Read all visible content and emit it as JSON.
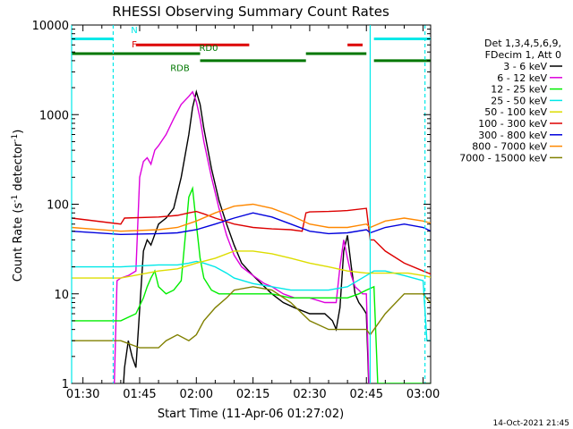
{
  "chart_data": {
    "type": "line",
    "title": "RHESSI Observing Summary Count Rates",
    "xlabel": "Start Time (11-Apr-06 01:27:02)",
    "ylabel_main": "Count Rate (s",
    "ylabel_sup1": "-1",
    "ylabel_mid": " detector",
    "ylabel_sup2": "-1",
    "ylabel_end": ")",
    "footer": "14-Oct-2021 21:45",
    "yscale": "log",
    "ylim": [
      1,
      10000
    ],
    "xlim": [
      87,
      182
    ],
    "x_unit": "minutes after 00:00 UT",
    "grid": false,
    "legend_placement": "right",
    "x_ticks": [
      {
        "value": 90,
        "label": "01:30"
      },
      {
        "value": 105,
        "label": "01:45"
      },
      {
        "value": 120,
        "label": "02:00"
      },
      {
        "value": 135,
        "label": "02:15"
      },
      {
        "value": 150,
        "label": "02:30"
      },
      {
        "value": 165,
        "label": "02:45"
      },
      {
        "value": 180,
        "label": "03:00"
      }
    ],
    "y_ticks": [
      {
        "value": 1,
        "label": "1"
      },
      {
        "value": 10,
        "label": "10"
      },
      {
        "value": 100,
        "label": "100"
      },
      {
        "value": 1000,
        "label": "1000"
      },
      {
        "value": 10000,
        "label": "10000"
      }
    ],
    "legend_header": [
      "Det 1,3,4,5,6,9,",
      "FDecim 1, Att 0"
    ],
    "series": [
      {
        "name": "3 - 6 keV",
        "color": "#000000",
        "x": [
          87,
          100,
          101,
          102,
          103,
          104,
          106,
          107,
          108,
          110,
          112,
          114,
          116,
          118,
          119,
          120,
          121,
          122,
          124,
          126,
          128,
          130,
          132,
          135,
          138,
          140,
          143,
          146,
          150,
          154,
          156,
          157,
          158,
          159,
          160,
          161,
          162,
          163,
          164,
          165,
          166,
          167
        ],
        "y": [
          0,
          0,
          1.5,
          3,
          2,
          1.5,
          30,
          40,
          35,
          60,
          70,
          90,
          200,
          600,
          1200,
          1800,
          1300,
          700,
          250,
          110,
          60,
          35,
          22,
          16,
          12,
          10,
          8,
          7,
          6,
          6,
          5,
          4,
          7,
          30,
          45,
          20,
          10,
          8,
          7,
          6,
          0,
          0
        ]
      },
      {
        "name": "6 - 12 keV",
        "color": "#dd00dd",
        "x": [
          87,
          98,
          99,
          100,
          102,
          104,
          105,
          106,
          107,
          108,
          109,
          110,
          112,
          114,
          116,
          118,
          119,
          120,
          121,
          122,
          124,
          126,
          128,
          130,
          132,
          135,
          138,
          140,
          143,
          146,
          150,
          154,
          157,
          158,
          159,
          160,
          161,
          162,
          163,
          164,
          165,
          166,
          167
        ],
        "y": [
          0,
          0,
          14,
          15,
          16,
          18,
          200,
          300,
          330,
          280,
          400,
          450,
          600,
          900,
          1300,
          1600,
          1800,
          1400,
          900,
          500,
          200,
          90,
          45,
          27,
          20,
          16,
          13,
          12,
          10,
          9,
          9,
          8,
          8,
          20,
          40,
          25,
          16,
          12,
          11,
          10,
          10,
          0,
          0
        ]
      },
      {
        "name": "12 - 25 keV",
        "color": "#00ee00",
        "x": [
          87,
          100,
          104,
          106,
          107,
          108,
          109,
          110,
          112,
          114,
          116,
          117,
          118,
          119,
          120,
          121,
          122,
          124,
          126,
          128,
          130,
          135,
          140,
          145,
          150,
          155,
          160,
          163,
          165,
          167,
          168,
          169,
          170,
          172,
          175,
          180,
          183
        ],
        "y": [
          5,
          5,
          6,
          9,
          12,
          15,
          18,
          12,
          10,
          11,
          14,
          40,
          120,
          150,
          60,
          25,
          15,
          11,
          10,
          10,
          10,
          10,
          10,
          9,
          9,
          9,
          9,
          10,
          11,
          12,
          1,
          1,
          1,
          1,
          1,
          1,
          1
        ]
      },
      {
        "name": "25 - 50 keV",
        "color": "#00e8e8",
        "x": [
          87,
          100,
          110,
          115,
          118,
          120,
          122,
          125,
          128,
          130,
          135,
          140,
          145,
          150,
          155,
          160,
          165,
          167,
          170,
          175,
          180,
          181,
          183
        ],
        "y": [
          20,
          20,
          21,
          21,
          22,
          23,
          22,
          20,
          17,
          15,
          13,
          12,
          11,
          11,
          11,
          12,
          16,
          18,
          18,
          16,
          14,
          3,
          3
        ]
      },
      {
        "name": "50 - 100 keV",
        "color": "#dddd00",
        "x": [
          87,
          100,
          110,
          115,
          120,
          125,
          130,
          135,
          140,
          145,
          150,
          155,
          160,
          165,
          168,
          170,
          173,
          176,
          180,
          183
        ],
        "y": [
          15,
          15,
          18,
          19,
          22,
          25,
          30,
          30,
          28,
          25,
          22,
          20,
          18,
          17,
          17,
          17,
          17,
          17,
          16,
          15
        ]
      },
      {
        "name": "100 - 300 keV",
        "color": "#dd0000",
        "x": [
          87,
          100,
          101,
          110,
          115,
          118,
          120,
          122,
          125,
          130,
          135,
          140,
          145,
          148,
          149,
          150,
          155,
          160,
          165,
          166,
          167,
          170,
          175,
          180,
          183
        ],
        "y": [
          70,
          60,
          70,
          72,
          75,
          80,
          83,
          78,
          70,
          60,
          55,
          53,
          52,
          50,
          80,
          82,
          83,
          85,
          90,
          40,
          40,
          30,
          22,
          18,
          16
        ]
      },
      {
        "name": "300 - 800 keV",
        "color": "#0000dd",
        "x": [
          87,
          100,
          110,
          115,
          120,
          125,
          130,
          135,
          140,
          145,
          150,
          155,
          160,
          165,
          166,
          170,
          175,
          180,
          183
        ],
        "y": [
          50,
          46,
          47,
          48,
          52,
          60,
          70,
          80,
          72,
          60,
          50,
          47,
          48,
          52,
          48,
          55,
          60,
          55,
          48
        ]
      },
      {
        "name": "800 - 7000 keV",
        "color": "#ff8800",
        "x": [
          87,
          100,
          110,
          115,
          120,
          125,
          130,
          135,
          140,
          145,
          150,
          155,
          160,
          165,
          166,
          170,
          175,
          180,
          183
        ],
        "y": [
          55,
          50,
          52,
          55,
          65,
          80,
          95,
          100,
          90,
          75,
          60,
          55,
          55,
          60,
          55,
          65,
          70,
          65,
          60
        ]
      },
      {
        "name": "7000 - 15000 keV",
        "color": "#808000",
        "x": [
          87,
          100,
          105,
          110,
          112,
          115,
          118,
          120,
          122,
          125,
          128,
          130,
          135,
          140,
          145,
          150,
          155,
          160,
          165,
          166,
          170,
          175,
          180,
          183
        ],
        "y": [
          3,
          3,
          2.5,
          2.5,
          3,
          3.5,
          3,
          3.5,
          5,
          7,
          9,
          11,
          12,
          11,
          8,
          5,
          4,
          4,
          4,
          3.5,
          6,
          10,
          10,
          7
        ]
      }
    ],
    "flags": [
      {
        "label": "N",
        "color": "#00e8e8",
        "y": 7000,
        "segments": [
          [
            87,
            98
          ],
          [
            167,
            182
          ]
        ]
      },
      {
        "label": "F",
        "color": "#dd0000",
        "y": 6000,
        "segments": [
          [
            104,
            134
          ],
          [
            160,
            164
          ]
        ]
      },
      {
        "label": "RD0",
        "color": "#007700",
        "y": 4800,
        "segments": [
          [
            87,
            121
          ],
          [
            149,
            165
          ]
        ]
      },
      {
        "label": "RDB",
        "color": "#007700",
        "y": 4000,
        "segments": [
          [
            121,
            149
          ],
          [
            167,
            182
          ]
        ]
      }
    ],
    "vlines": [
      {
        "x": 87,
        "color": "#00e8e8",
        "style": "solid"
      },
      {
        "x": 98,
        "color": "#00e8e8",
        "style": "dashed"
      },
      {
        "x": 166,
        "color": "#00e8e8",
        "style": "solid"
      },
      {
        "x": 180.5,
        "color": "#00e8e8",
        "style": "dashed"
      }
    ]
  }
}
